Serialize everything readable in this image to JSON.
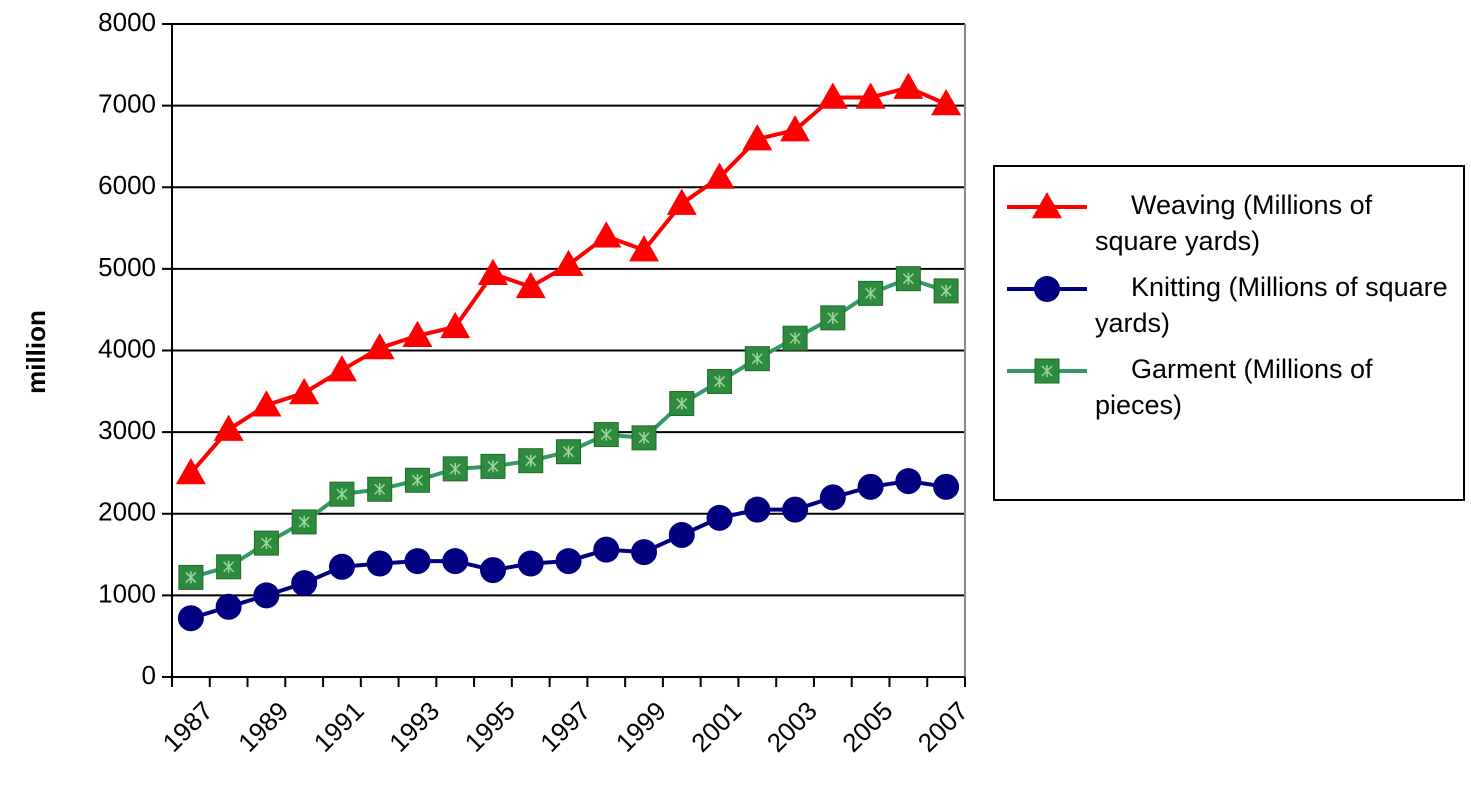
{
  "chart_data": {
    "type": "line",
    "y_label": "million",
    "categories": [
      "1987",
      null,
      "1989",
      null,
      "1991",
      null,
      "1993",
      null,
      "1995",
      null,
      "1997",
      null,
      "1999",
      null,
      "2001",
      null,
      "2003",
      null,
      "2005",
      null,
      "2007"
    ],
    "series": [
      {
        "name": "Weaving (Millions of square yards)",
        "color": "#ff0000",
        "marker": "triangle",
        "values": [
          2500,
          3030,
          3330,
          3480,
          3760,
          4030,
          4180,
          4290,
          4940,
          4780,
          5050,
          5400,
          5230,
          5800,
          6120,
          6590,
          6700,
          7100,
          7100,
          7220,
          7020
        ]
      },
      {
        "name": "Knitting (Millions of square yards)",
        "color": "#000080",
        "marker": "circle",
        "values": [
          720,
          860,
          1000,
          1150,
          1350,
          1390,
          1420,
          1420,
          1310,
          1390,
          1420,
          1560,
          1530,
          1740,
          1950,
          2050,
          2050,
          2200,
          2330,
          2400,
          2330
        ]
      },
      {
        "name": "Garment (Millions of pieces)",
        "color": "#339966",
        "marker": "square",
        "values": [
          1220,
          1350,
          1640,
          1900,
          2240,
          2300,
          2410,
          2550,
          2580,
          2650,
          2760,
          2970,
          2930,
          3350,
          3620,
          3900,
          4150,
          4400,
          4700,
          4880,
          4730
        ]
      }
    ],
    "ylim": [
      0,
      8000
    ],
    "yticks": [
      0,
      1000,
      2000,
      3000,
      4000,
      5000,
      6000,
      7000,
      8000
    ],
    "grid": true,
    "legend": "right"
  }
}
